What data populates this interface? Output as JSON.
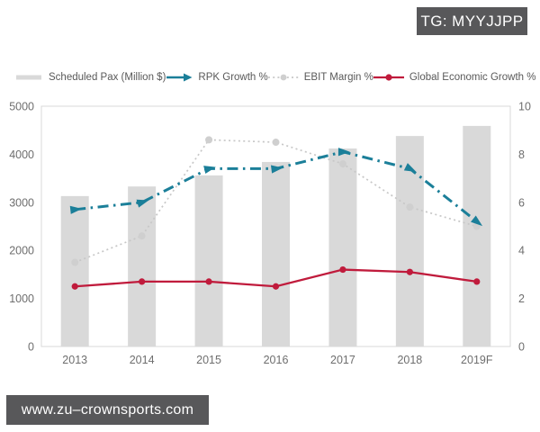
{
  "header": {
    "tag_badge": "TG: MYYJJPP"
  },
  "footer": {
    "site_badge": "www.zu–crownsports.com"
  },
  "colors": {
    "bar": "#d9d9d9",
    "rpk": "#1b7f99",
    "ebit": "#c7c7c7",
    "ebit_marker": "#cfcfcf",
    "economy": "#c01b3c",
    "axis_line": "#d9d9d9",
    "axis_text": "#6e6e6e",
    "legend_text": "#595959",
    "badge_bg": "#58585a",
    "badge_text": "#ffffff"
  },
  "legend": {
    "items": [
      {
        "label": "Scheduled Pax (Million $)",
        "swatch": "bar"
      },
      {
        "label": "RPK Growth %",
        "swatch": "line-dashdot-arrow"
      },
      {
        "label": "EBIT Margin %",
        "swatch": "line-dotted-circle"
      },
      {
        "label": "Global Economic Growth %",
        "swatch": "line-solid-circle"
      }
    ]
  },
  "chart_data": {
    "type": "bar",
    "subtype": "combo-bar-line-dual-axis",
    "categories": [
      "2013",
      "2014",
      "2015",
      "2016",
      "2017",
      "2018",
      "2019F"
    ],
    "series": [
      {
        "name": "Scheduled Pax (Million $)",
        "type": "bar",
        "axis": "left",
        "values": [
          3130,
          3330,
          3560,
          3840,
          4120,
          4380,
          4590
        ]
      },
      {
        "name": "RPK Growth %",
        "type": "line",
        "style": "dash-dot",
        "marker": "arrow",
        "axis": "right",
        "values": [
          5.7,
          6.0,
          7.4,
          7.4,
          8.1,
          7.4,
          5.2
        ]
      },
      {
        "name": "EBIT Margin %",
        "type": "line",
        "style": "dotted",
        "marker": "circle",
        "axis": "right",
        "values": [
          3.5,
          4.6,
          8.6,
          8.5,
          7.6,
          5.8,
          5.0
        ]
      },
      {
        "name": "Global Economic Growth %",
        "type": "line",
        "style": "solid",
        "marker": "circle",
        "axis": "right",
        "values": [
          2.5,
          2.7,
          2.7,
          2.5,
          3.2,
          3.1,
          2.7
        ]
      }
    ],
    "title": "",
    "xlabel": "",
    "ylabel_left": "",
    "ylabel_right": "",
    "left_axis": {
      "min": 0,
      "max": 5000,
      "ticks": [
        0,
        1000,
        2000,
        3000,
        4000,
        5000
      ]
    },
    "right_axis": {
      "min": 0,
      "max": 10,
      "ticks": [
        0,
        2,
        4,
        6,
        8,
        10
      ]
    },
    "grid": false,
    "legend_position": "top"
  }
}
